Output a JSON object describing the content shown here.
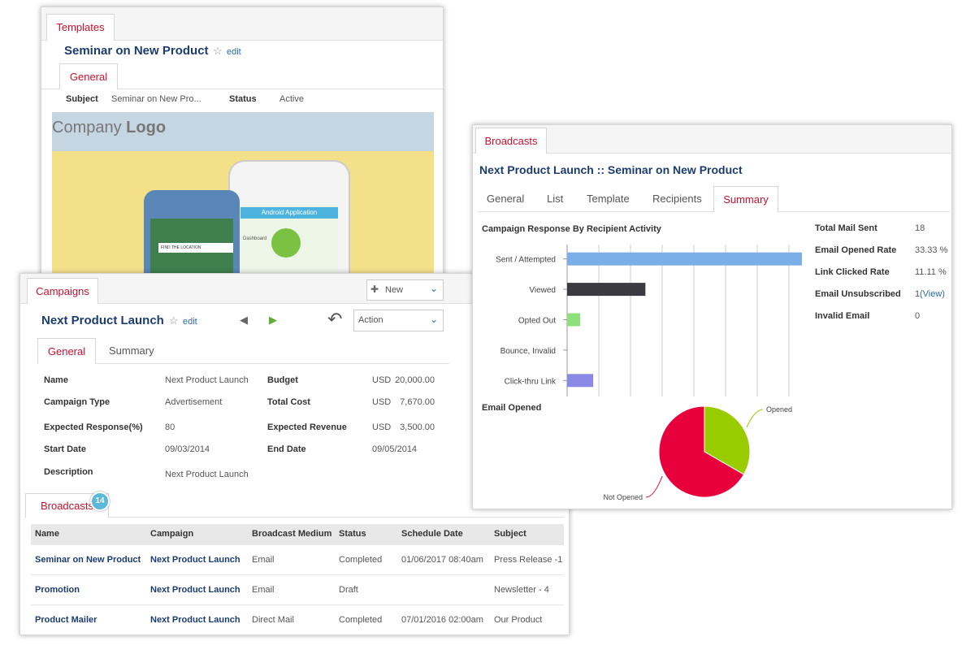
{
  "templates_panel": {
    "tab": "Templates",
    "title": "Seminar on New Product",
    "edit": "edit",
    "tab_general": "General",
    "subject_label": "Subject",
    "subject_value": "Seminar on New Pro...",
    "status_label": "Status",
    "status_value": "Active",
    "logo_company": "Company",
    "logo_word": "Logo",
    "phone_app": "Android Application",
    "phone_dashboard": "Dashboard",
    "phone_find": "FIND THE LOCATION"
  },
  "campaigns_panel": {
    "tab": "Campaigns",
    "new_button": "New",
    "title": "Next Product Launch",
    "edit": "edit",
    "action": "Action",
    "tabs": [
      "General",
      "Summary"
    ],
    "fields": [
      [
        {
          "label": "Name",
          "value": "Next Product Launch"
        },
        {
          "label": "Budget",
          "currency": "USD",
          "value": "20,000.00"
        }
      ],
      [
        {
          "label": "Campaign Type",
          "value": "Advertisement"
        },
        {
          "label": "Total Cost",
          "currency": "USD",
          "value": "7,670.00"
        }
      ],
      [
        {
          "label": "Expected Response(%)",
          "value": "80"
        },
        {
          "label": "Expected Revenue",
          "currency": "USD",
          "value": "3,500.00"
        }
      ],
      [
        {
          "label": "Start Date",
          "value": "09/03/2014"
        },
        {
          "label": "End Date",
          "value": "09/05/2014"
        }
      ],
      [
        {
          "label": "Description",
          "value": "Next Product Launch"
        }
      ]
    ],
    "broadcasts_tab": "Broadcasts",
    "broadcasts_count": "14",
    "table": {
      "headers": [
        "Name",
        "Campaign",
        "Broadcast Medium",
        "Status",
        "Schedule Date",
        "Subject"
      ],
      "rows": [
        [
          "Seminar on New Product",
          "Next Product Launch",
          "Email",
          "Completed",
          "01/06/2017 08:40am",
          "Press Release -1"
        ],
        [
          "Promotion",
          "Next Product Launch",
          "Email",
          "Draft",
          "",
          "Newsletter - 4"
        ],
        [
          "Product Mailer",
          "Next Product Launch",
          "Direct Mail",
          "Completed",
          "07/01/2016 02:00am",
          "Our Product"
        ]
      ]
    }
  },
  "broadcasts_panel": {
    "tab": "Broadcasts",
    "title_campaign": "Next Product Launch",
    "separator": "::",
    "title_template": "Seminar on New Product",
    "tabs": [
      "General",
      "List",
      "Template",
      "Recipients",
      "Summary"
    ],
    "stats": [
      {
        "label": "Total Mail Sent",
        "value": "18"
      },
      {
        "label": "Email Opened Rate",
        "value": "33.33 %"
      },
      {
        "label": "Link Clicked Rate",
        "value": "11.11 %"
      },
      {
        "label": "Email Unsubscribed",
        "value": "1",
        "link": "(View)"
      },
      {
        "label": "Invalid Email",
        "value": "0"
      }
    ]
  },
  "chart_data": [
    {
      "type": "bar",
      "title": "Campaign Response By Recipient Activity",
      "categories": [
        "Sent / Attempted",
        "Viewed",
        "Opted Out",
        "Bounce, Invalid",
        "Click-thru Link"
      ],
      "values": [
        18,
        6,
        1,
        0,
        2
      ],
      "colors": [
        "#7aaee6",
        "#3a3a40",
        "#8ee07a",
        "#cccccc",
        "#8a8ae6"
      ],
      "xlim": [
        0,
        18
      ],
      "grid": true
    },
    {
      "type": "pie",
      "title": "Email Opened",
      "categories": [
        "Opened",
        "Not Opened"
      ],
      "values": [
        33.33,
        66.67
      ],
      "colors": [
        "#99cc00",
        "#e8003d"
      ]
    }
  ]
}
